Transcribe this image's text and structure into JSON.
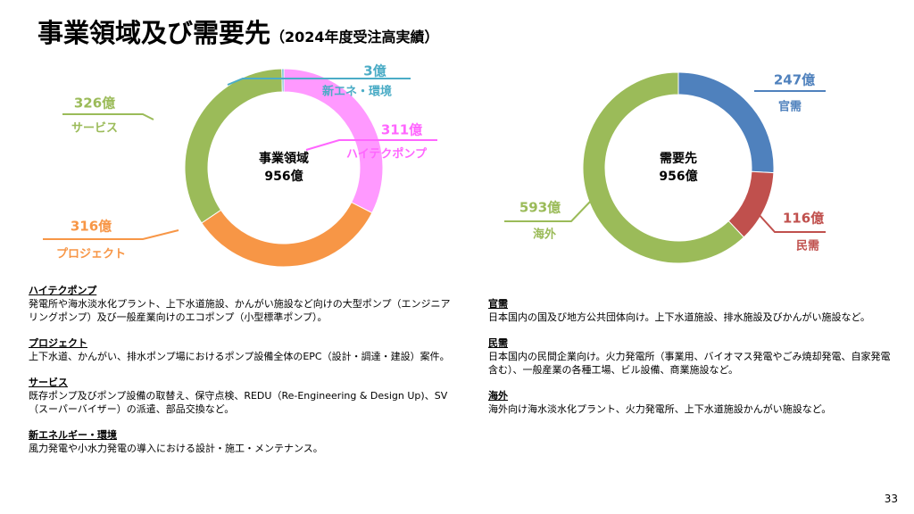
{
  "title": "事業領域及び需要先",
  "subtitle": "（2024年度受注高実績）",
  "chart_data": [
    {
      "type": "pie",
      "center_text": [
        "事業領域",
        "956億"
      ],
      "categories": [
        "ハイテクポンプ",
        "プロジェクト",
        "サービス",
        "新エネ・環境"
      ],
      "values": [
        311,
        316,
        326,
        3
      ],
      "value_labels": [
        "311億",
        "316億",
        "326億",
        "3億"
      ],
      "colors": [
        "#ff99ff",
        "#f79646",
        "#9bbb59",
        "#4bacc6"
      ]
    },
    {
      "type": "pie",
      "center_text": [
        "需要先",
        "956億"
      ],
      "categories": [
        "官需",
        "民需",
        "海外"
      ],
      "values": [
        247,
        116,
        593
      ],
      "value_labels": [
        "247億",
        "116億",
        "593億"
      ],
      "colors": [
        "#4f81bd",
        "#c0504d",
        "#9bbb59"
      ]
    }
  ],
  "descriptions_left": [
    {
      "heading": "ハイテクポンプ",
      "text": "発電所や海水淡水化プラント、上下水道施設、かんがい施設など向けの大型ポンプ（エンジニアリングポンプ）及び一般産業向けのエコポンプ（小型標準ポンプ）。"
    },
    {
      "heading": "プロジェクト",
      "text": "上下水道、かんがい、排水ポンプ場におけるポンプ設備全体のEPC（設計・調達・建設）案件。"
    },
    {
      "heading": "サービス",
      "text": "既存ポンプ及びポンプ設備の取替え、保守点検、REDU（Re-Engineering & Design Up)、SV（スーパーバイザー）の派遣、部品交換など。"
    },
    {
      "heading": "新エネルギー・環境",
      "text": "風力発電や小水力発電の導入における設計・施工・メンテナンス。"
    }
  ],
  "descriptions_right": [
    {
      "heading": "官需",
      "text": "日本国内の国及び地方公共団体向け。上下水道施設、排水施設及びかんがい施設など。"
    },
    {
      "heading": "民需",
      "text": "日本国内の民間企業向け。火力発電所（事業用、バイオマス発電やごみ焼却発電、自家発電含む）、一般産業の各種工場、ビル設備、商業施設など。"
    },
    {
      "heading": "海外",
      "text": "海外向け海水淡水化プラント、火力発電所、上下水道施設かんがい施設など。"
    }
  ],
  "page_number": "33"
}
